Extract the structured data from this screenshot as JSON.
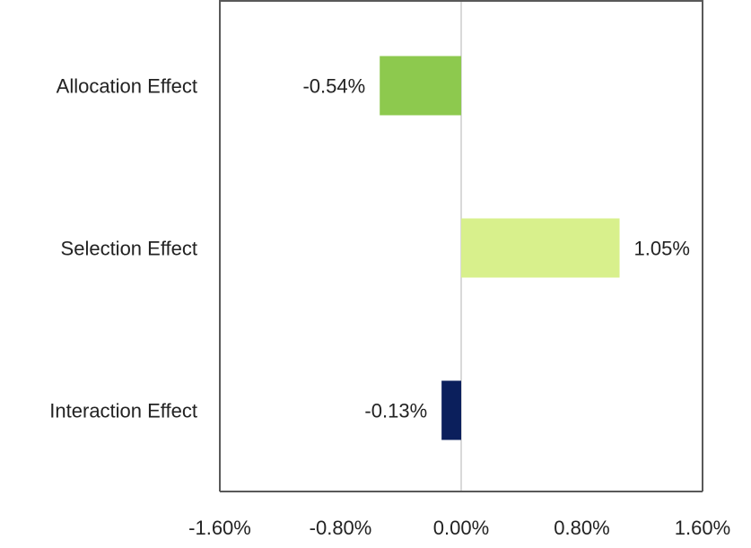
{
  "chart_data": {
    "type": "bar",
    "orientation": "horizontal",
    "categories": [
      "Allocation Effect",
      "Selection Effect",
      "Interaction Effect"
    ],
    "values": [
      -0.54,
      1.05,
      -0.13
    ],
    "value_labels": [
      "-0.54%",
      "1.05%",
      "-0.13%"
    ],
    "bar_colors": [
      "#8DC94E",
      "#D8F08C",
      "#0B1F5C"
    ],
    "xlim": [
      -1.6,
      1.6
    ],
    "x_ticks": [
      -1.6,
      -0.8,
      0,
      0.8,
      1.6
    ],
    "x_tick_labels": [
      "-1.60%",
      "-0.80%",
      "0.00%",
      "0.80%",
      "1.60%"
    ],
    "title": "",
    "xlabel": "",
    "ylabel": "",
    "grid": false,
    "legend": "none"
  },
  "colors": {
    "frame": "#595959",
    "zero_line": "#d9d9d9",
    "text": "#222222"
  }
}
